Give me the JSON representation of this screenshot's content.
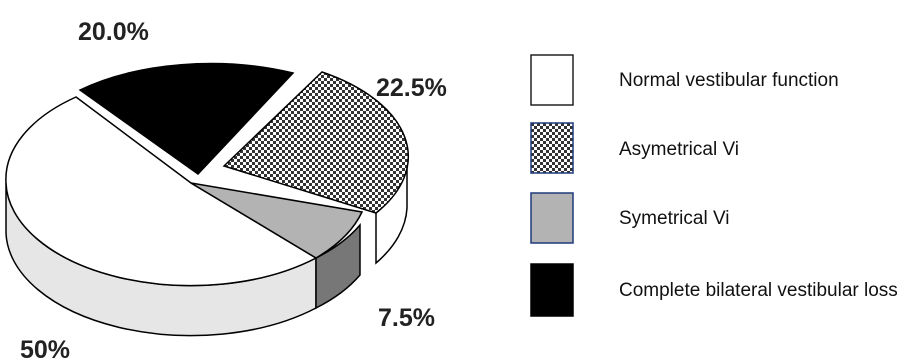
{
  "chart_data": {
    "type": "pie",
    "style": "3d-exploded",
    "title": "",
    "slices": [
      {
        "label": "Normal vestibular function",
        "value": 50,
        "value_label": "50%",
        "fill": "#ffffff",
        "side": "#e6e6e6",
        "pattern": "none",
        "exploded": false
      },
      {
        "label": "Asymetrical Vi",
        "value": 22.5,
        "value_label": "22.5%",
        "fill": "#4a4a4a",
        "side": "#ffffff",
        "pattern": "checker",
        "exploded": true
      },
      {
        "label": "Symetrical Vi",
        "value": 7.5,
        "value_label": "7.5%",
        "fill": "#b3b3b3",
        "side": "#777777",
        "pattern": "none",
        "exploded": false
      },
      {
        "label": "Complete bilateral vestibular loss",
        "value": 20.0,
        "value_label": "20.0%",
        "fill": "#000000",
        "side": "#000000",
        "pattern": "none",
        "exploded": false
      }
    ],
    "legend_position": "right"
  }
}
